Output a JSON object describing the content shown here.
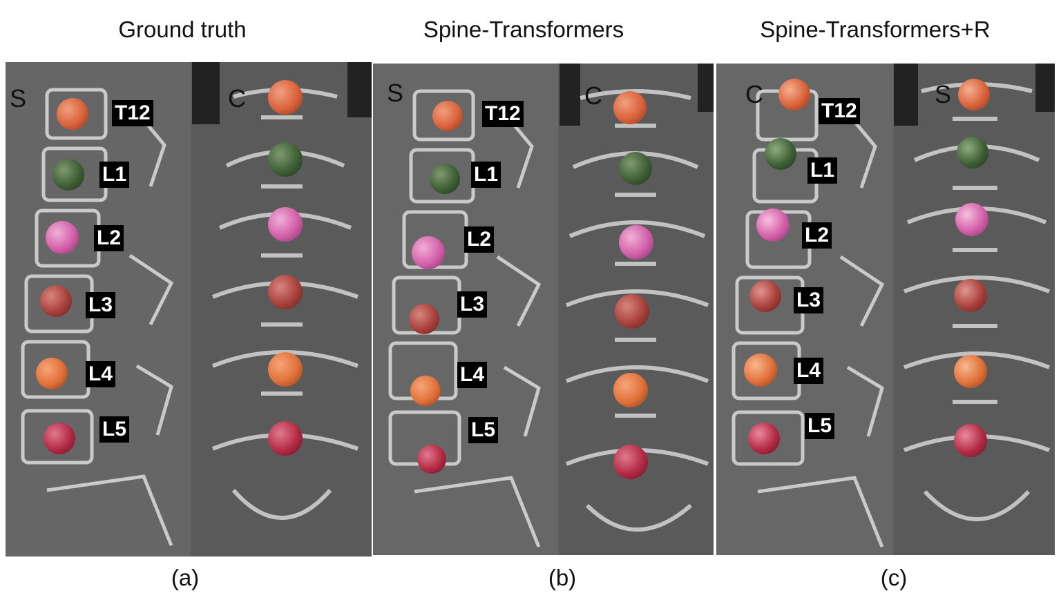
{
  "panels": [
    {
      "title": "Ground truth",
      "caption": "(a)",
      "left_view": "S",
      "right_view": "C"
    },
    {
      "title": "Spine-Transformers",
      "caption": "(b)",
      "left_view": "S",
      "right_view": "C"
    },
    {
      "title": "Spine-Transformers+R",
      "caption": "(c)",
      "left_view": "C",
      "right_view": "S"
    }
  ],
  "vertebrae": [
    "T12",
    "L1",
    "L2",
    "L3",
    "L4",
    "L5"
  ],
  "colors": {
    "T12": "#d9623a",
    "L1": "#3f5f36",
    "L2": "#d35fa8",
    "L3": "#a8403b",
    "L4": "#e0703a",
    "L5": "#b42a45"
  }
}
